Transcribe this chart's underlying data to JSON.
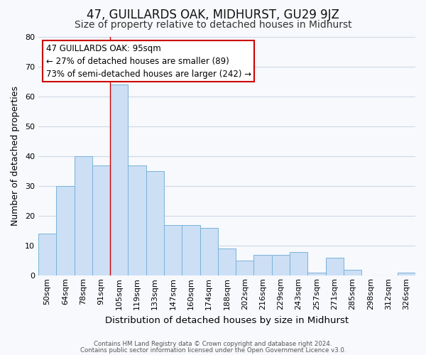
{
  "title": "47, GUILLARDS OAK, MIDHURST, GU29 9JZ",
  "subtitle": "Size of property relative to detached houses in Midhurst",
  "xlabel": "Distribution of detached houses by size in Midhurst",
  "ylabel": "Number of detached properties",
  "bar_labels": [
    "50sqm",
    "64sqm",
    "78sqm",
    "91sqm",
    "105sqm",
    "119sqm",
    "133sqm",
    "147sqm",
    "160sqm",
    "174sqm",
    "188sqm",
    "202sqm",
    "216sqm",
    "229sqm",
    "243sqm",
    "257sqm",
    "271sqm",
    "285sqm",
    "298sqm",
    "312sqm",
    "326sqm"
  ],
  "bar_heights": [
    14,
    30,
    40,
    37,
    64,
    37,
    35,
    17,
    17,
    16,
    9,
    5,
    7,
    7,
    8,
    1,
    6,
    2,
    0,
    0,
    1
  ],
  "bar_color": "#ccdff5",
  "bar_edge_color": "#7ab3d9",
  "ylim": [
    0,
    80
  ],
  "yticks": [
    0,
    10,
    20,
    30,
    40,
    50,
    60,
    70,
    80
  ],
  "vline_x": 3.5,
  "vline_color": "#cc0000",
  "annotation_text": "47 GUILLARDS OAK: 95sqm\n← 27% of detached houses are smaller (89)\n73% of semi-detached houses are larger (242) →",
  "annotation_box_color": "#ffffff",
  "annotation_box_edge": "#cc0000",
  "footer1": "Contains HM Land Registry data © Crown copyright and database right 2024.",
  "footer2": "Contains public sector information licensed under the Open Government Licence v3.0.",
  "bg_color": "#f7f9fc",
  "plot_bg_color": "#f7f9fc",
  "grid_color": "#d0d8e8",
  "title_fontsize": 12,
  "subtitle_fontsize": 10,
  "tick_fontsize": 8
}
